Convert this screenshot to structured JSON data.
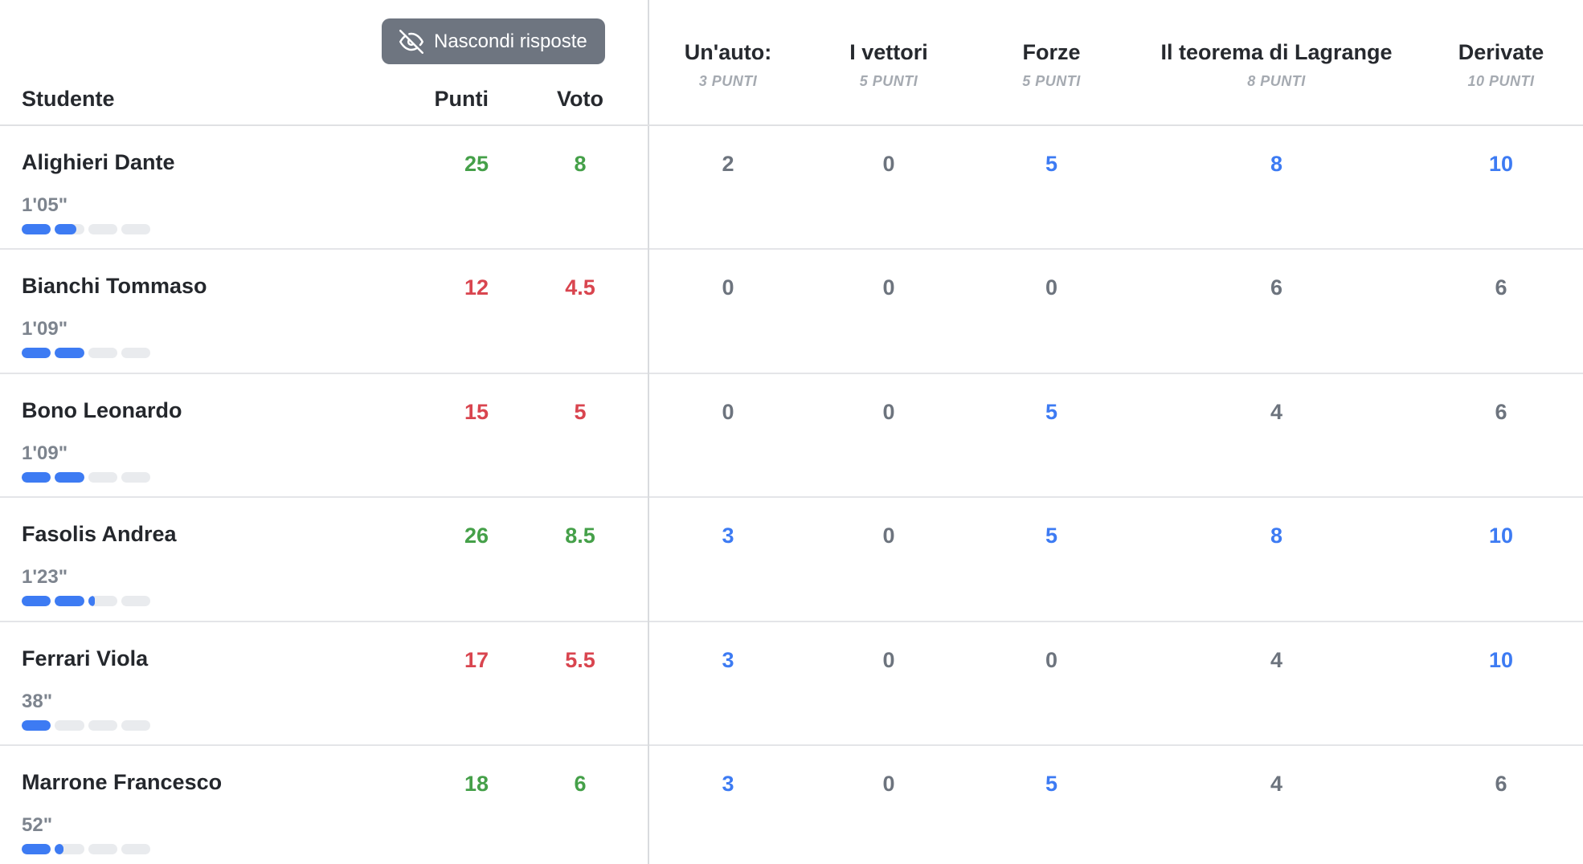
{
  "toolbar": {
    "hide_answers_label": "Nascondi risposte"
  },
  "header": {
    "student": "Studente",
    "points": "Punti",
    "grade": "Voto",
    "questions": [
      {
        "title": "Un'auto:",
        "max_label": "3 PUNTI"
      },
      {
        "title": "I vettori",
        "max_label": "5 PUNTI"
      },
      {
        "title": "Forze",
        "max_label": "5 PUNTI"
      },
      {
        "title": "Il teorema di Lagrange",
        "max_label": "8 PUNTI"
      },
      {
        "title": "Derivate",
        "max_label": "10 PUNTI"
      }
    ]
  },
  "students": [
    {
      "name": "Alighieri Dante",
      "points": "25",
      "grade": "8",
      "passed": true,
      "time": "1'05\"",
      "progress_segments": [
        100,
        74,
        0,
        0
      ],
      "answers": [
        {
          "score": "2",
          "full_marks": false
        },
        {
          "score": "0",
          "full_marks": false
        },
        {
          "score": "5",
          "full_marks": true
        },
        {
          "score": "8",
          "full_marks": true
        },
        {
          "score": "10",
          "full_marks": true
        }
      ]
    },
    {
      "name": "Bianchi Tommaso",
      "points": "12",
      "grade": "4.5",
      "passed": false,
      "time": "1'09\"",
      "progress_segments": [
        100,
        100,
        0,
        0
      ],
      "answers": [
        {
          "score": "0",
          "full_marks": false
        },
        {
          "score": "0",
          "full_marks": false
        },
        {
          "score": "0",
          "full_marks": false
        },
        {
          "score": "6",
          "full_marks": false
        },
        {
          "score": "6",
          "full_marks": false
        }
      ]
    },
    {
      "name": "Bono Leonardo",
      "points": "15",
      "grade": "5",
      "passed": false,
      "time": "1'09\"",
      "progress_segments": [
        100,
        100,
        0,
        0
      ],
      "answers": [
        {
          "score": "0",
          "full_marks": false
        },
        {
          "score": "0",
          "full_marks": false
        },
        {
          "score": "5",
          "full_marks": true
        },
        {
          "score": "4",
          "full_marks": false
        },
        {
          "score": "6",
          "full_marks": false
        }
      ]
    },
    {
      "name": "Fasolis Andrea",
      "points": "26",
      "grade": "8.5",
      "passed": true,
      "time": "1'23\"",
      "progress_segments": [
        100,
        100,
        23,
        0
      ],
      "answers": [
        {
          "score": "3",
          "full_marks": true
        },
        {
          "score": "0",
          "full_marks": false
        },
        {
          "score": "5",
          "full_marks": true
        },
        {
          "score": "8",
          "full_marks": true
        },
        {
          "score": "10",
          "full_marks": true
        }
      ]
    },
    {
      "name": "Ferrari Viola",
      "points": "17",
      "grade": "5.5",
      "passed": false,
      "time": "38\"",
      "progress_segments": [
        100,
        0,
        0,
        0
      ],
      "answers": [
        {
          "score": "3",
          "full_marks": true
        },
        {
          "score": "0",
          "full_marks": false
        },
        {
          "score": "0",
          "full_marks": false
        },
        {
          "score": "4",
          "full_marks": false
        },
        {
          "score": "10",
          "full_marks": true
        }
      ]
    },
    {
      "name": "Marrone Francesco",
      "points": "18",
      "grade": "6",
      "passed": true,
      "time": "52\"",
      "progress_segments": [
        100,
        31,
        0,
        0
      ],
      "answers": [
        {
          "score": "3",
          "full_marks": true
        },
        {
          "score": "0",
          "full_marks": false
        },
        {
          "score": "5",
          "full_marks": true
        },
        {
          "score": "4",
          "full_marks": false
        },
        {
          "score": "6",
          "full_marks": false
        }
      ]
    }
  ],
  "icons": {
    "hide_answers": "eye-off-icon"
  },
  "colors": {
    "pass_green": "#45a049",
    "fail_red": "#d9454f",
    "full_marks_blue": "#3d7bf3",
    "partial_gray": "#6d747e",
    "button_gray": "#6e7580"
  }
}
